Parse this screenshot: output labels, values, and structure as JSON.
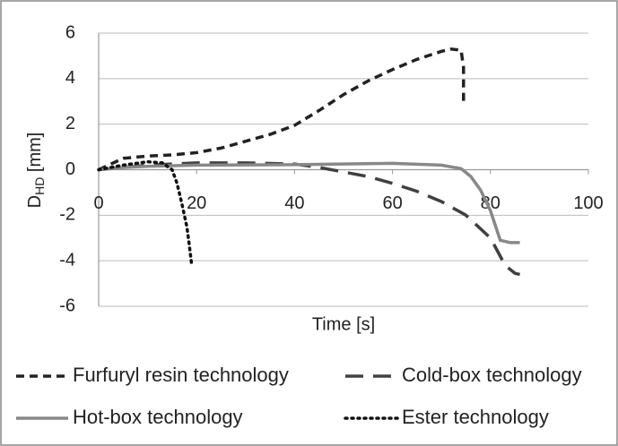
{
  "chart_data": {
    "type": "line",
    "ylabel": [
      "D",
      "HD",
      " [mm]"
    ],
    "xlabel": "Time [s]",
    "xlim": [
      0,
      100
    ],
    "xticks": [
      0,
      20,
      40,
      60,
      80,
      100
    ],
    "ylim": [
      -6,
      6
    ],
    "yticks": [
      -6,
      -4,
      -2,
      0,
      2,
      4,
      6
    ],
    "grid": true,
    "legend": "bottom",
    "series": [
      {
        "name": "Furfuryl resin technology",
        "color": "#222222",
        "dash": "9,6",
        "x": [
          0,
          3,
          5,
          10,
          15,
          20,
          25,
          30,
          35,
          40,
          45,
          50,
          55,
          60,
          65,
          70,
          72,
          74,
          74.5,
          74.5
        ],
        "values": [
          0,
          0.3,
          0.5,
          0.6,
          0.65,
          0.75,
          0.95,
          1.25,
          1.55,
          1.95,
          2.6,
          3.3,
          3.9,
          4.4,
          4.85,
          5.2,
          5.3,
          5.25,
          4.5,
          3.0
        ]
      },
      {
        "name": "Cold-box technology",
        "color": "#404040",
        "dash": "20,11",
        "x": [
          0,
          5,
          10,
          20,
          30,
          40,
          45,
          50,
          55,
          60,
          65,
          70,
          75,
          80,
          83,
          85,
          86
        ],
        "values": [
          0,
          0.1,
          0.2,
          0.3,
          0.3,
          0.25,
          0.1,
          -0.1,
          -0.3,
          -0.6,
          -0.95,
          -1.4,
          -2.0,
          -3.0,
          -4.2,
          -4.55,
          -4.6
        ]
      },
      {
        "name": "Hot-box technology",
        "color": "#888888",
        "dash": "none",
        "x": [
          0,
          5,
          10,
          20,
          40,
          60,
          70,
          74,
          76,
          78,
          80,
          82,
          84,
          86
        ],
        "values": [
          0,
          0.1,
          0.15,
          0.2,
          0.22,
          0.28,
          0.2,
          0.05,
          -0.3,
          -0.9,
          -1.8,
          -3.1,
          -3.2,
          -3.2
        ]
      },
      {
        "name": "Ester technology",
        "color": "#111111",
        "dash": "2,5",
        "x": [
          0,
          5,
          10,
          13,
          15,
          16,
          17,
          18,
          18.5,
          19
        ],
        "values": [
          0,
          0.2,
          0.35,
          0.3,
          0,
          -0.6,
          -1.5,
          -2.5,
          -3.3,
          -4.2
        ]
      }
    ]
  }
}
